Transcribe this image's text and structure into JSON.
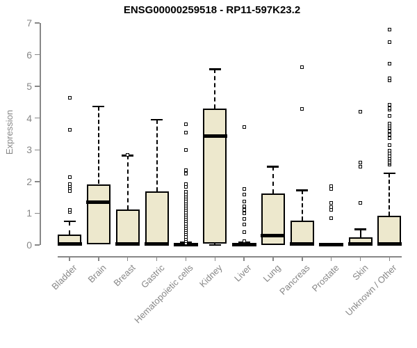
{
  "chart_data": {
    "type": "boxplot",
    "title": "ENSG00000259518 - RP11-597K23.2",
    "ylabel": "Expression",
    "xlabel": "",
    "ylim": [
      0,
      7
    ],
    "yticks": [
      0,
      1,
      2,
      3,
      4,
      5,
      6,
      7
    ],
    "grid": false,
    "legend": "none",
    "box_fill_color": "#EDE8CD",
    "box_line_color": "#000000",
    "axis_color": "#878787",
    "categories": [
      "Bladder",
      "Brain",
      "Breast",
      "Gastric",
      "Hematopoietic cells",
      "Kidney",
      "Liver",
      "Lung",
      "Pancreas",
      "Prostate",
      "Skin",
      "Unknown / Other"
    ],
    "boxes": [
      {
        "category": "Bladder",
        "whisker_low": 0,
        "q1": 0,
        "median": 0.04,
        "q3": 0.33,
        "whisker_high": 0.75,
        "outliers": [
          1.05,
          1.1,
          1.7,
          1.78,
          1.85,
          1.92,
          2.13,
          3.63,
          4.65
        ]
      },
      {
        "category": "Brain",
        "whisker_low": 0,
        "q1": 0.02,
        "median": 1.35,
        "q3": 1.92,
        "whisker_high": 4.37,
        "outliers": []
      },
      {
        "category": "Breast",
        "whisker_low": 0,
        "q1": 0,
        "median": 0.03,
        "q3": 1.12,
        "whisker_high": 2.83,
        "outliers": [
          2.85
        ]
      },
      {
        "category": "Gastric",
        "whisker_low": 0,
        "q1": 0,
        "median": 0.04,
        "q3": 1.68,
        "whisker_high": 3.95,
        "outliers": []
      },
      {
        "category": "Hematopoietic cells",
        "whisker_low": 0,
        "q1": 0,
        "median": 0.02,
        "q3": 0.05,
        "whisker_high": 0.08,
        "outliers": [
          0.05,
          0.12,
          0.19,
          0.26,
          0.33,
          0.4,
          0.47,
          0.54,
          0.61,
          0.68,
          0.75,
          0.82,
          0.89,
          0.96,
          1.03,
          1.1,
          1.17,
          1.24,
          1.31,
          1.38,
          1.45,
          1.52,
          1.59,
          1.67,
          1.84,
          1.91,
          2.24,
          2.35,
          3.0,
          3.55,
          3.81
        ]
      },
      {
        "category": "Kidney",
        "whisker_low": 0,
        "q1": 0.05,
        "median": 3.43,
        "q3": 4.3,
        "whisker_high": 5.55,
        "outliers": []
      },
      {
        "category": "Liver",
        "whisker_low": 0,
        "q1": 0,
        "median": 0.02,
        "q3": 0.05,
        "whisker_high": 0.08,
        "outliers": [
          0.13,
          0.41,
          0.64,
          0.82,
          1.0,
          1.1,
          1.21,
          1.38,
          1.58,
          1.76,
          3.73
        ]
      },
      {
        "category": "Lung",
        "whisker_low": 0,
        "q1": 0,
        "median": 0.3,
        "q3": 1.62,
        "whisker_high": 2.47,
        "outliers": []
      },
      {
        "category": "Pancreas",
        "whisker_low": 0,
        "q1": 0,
        "median": 0.04,
        "q3": 0.77,
        "whisker_high": 1.73,
        "outliers": [
          4.3,
          5.6
        ]
      },
      {
        "category": "Prostate",
        "whisker_low": 0,
        "q1": 0,
        "median": 0.02,
        "q3": 0.05,
        "whisker_high": 0.07,
        "outliers": [
          0.85,
          1.1,
          1.2,
          1.32,
          1.77,
          1.86
        ]
      },
      {
        "category": "Skin",
        "whisker_low": 0,
        "q1": 0,
        "median": 0.03,
        "q3": 0.24,
        "whisker_high": 0.5,
        "outliers": [
          1.32,
          2.46,
          2.6,
          4.2
        ]
      },
      {
        "category": "Unknown / Other",
        "whisker_low": 0,
        "q1": 0,
        "median": 0.03,
        "q3": 0.92,
        "whisker_high": 2.27,
        "outliers": [
          2.53,
          2.58,
          2.63,
          2.68,
          2.74,
          2.79,
          2.89,
          2.97,
          3.15,
          3.37,
          3.48,
          3.59,
          3.7,
          3.77,
          3.84,
          4.06,
          4.26,
          4.32,
          4.43,
          5.2,
          5.25,
          5.71,
          6.4,
          6.8
        ]
      }
    ]
  }
}
